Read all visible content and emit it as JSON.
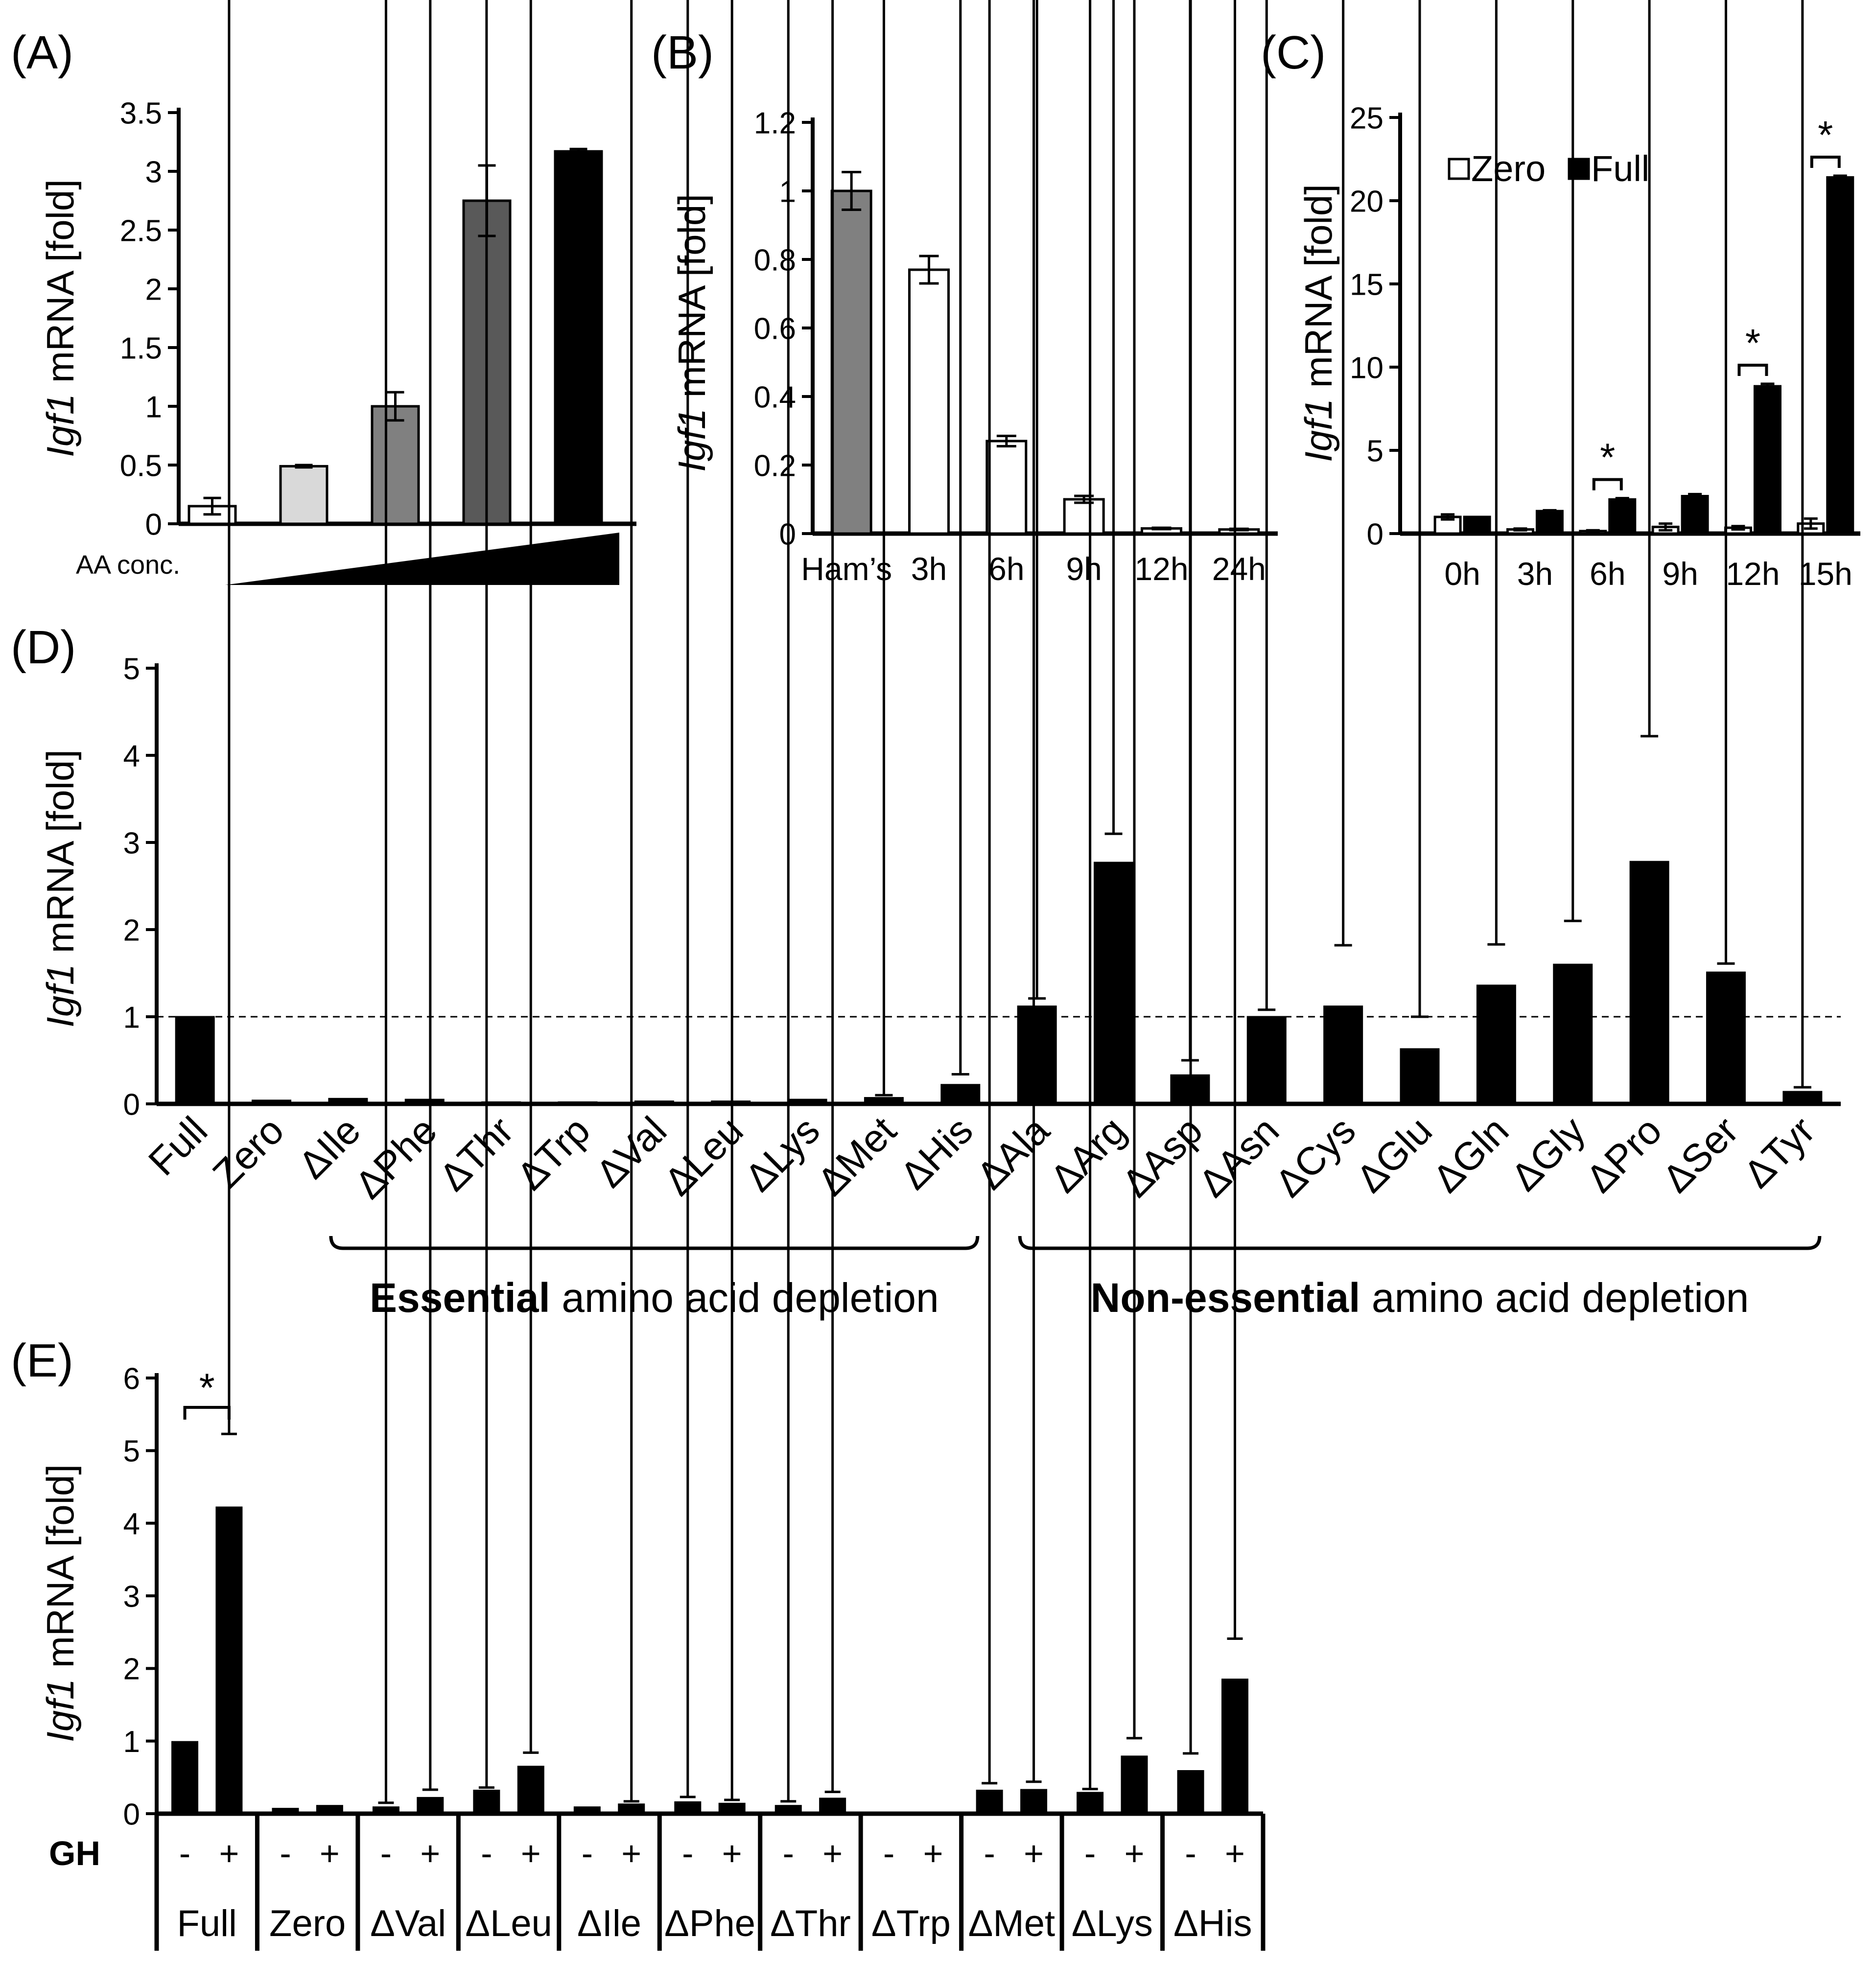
{
  "chart_data": [
    {
      "panel": "(A)",
      "type": "bar",
      "ylabel_italic": "Igf1",
      "ylabel_rest": " mRNA [fold]",
      "ylim": [
        0,
        3.5
      ],
      "yticks": [
        "0",
        "0.5",
        "1",
        "1.5",
        "2",
        "2.5",
        "3",
        "3.5"
      ],
      "xlabel": "AA conc.",
      "categories": [
        "",
        "",
        "",
        "",
        ""
      ],
      "values": [
        0.15,
        0.49,
        1.0,
        2.75,
        3.17
      ],
      "errors": [
        0.07,
        0.01,
        0.12,
        0.3,
        0.02
      ],
      "colors": [
        "#ffffff",
        "#d9d9d9",
        "#808080",
        "#595959",
        "#000000"
      ]
    },
    {
      "panel": "(B)",
      "type": "bar",
      "ylabel_italic": "Igf1",
      "ylabel_rest": " mRNA [fold]",
      "ylim": [
        0,
        1.2
      ],
      "yticks": [
        "0",
        "0.2",
        "0.4",
        "0.6",
        "0.8",
        "1",
        "1.2"
      ],
      "categories": [
        "Ham’s",
        "3h",
        "6h",
        "9h",
        "12h",
        "24h"
      ],
      "values": [
        1.0,
        0.77,
        0.27,
        0.1,
        0.015,
        0.012
      ],
      "errors": [
        0.055,
        0.04,
        0.015,
        0.01,
        0.002,
        0.002
      ],
      "colors": [
        "#808080",
        "#ffffff",
        "#ffffff",
        "#ffffff",
        "#ffffff",
        "#ffffff"
      ]
    },
    {
      "panel": "(C)",
      "type": "bar",
      "ylabel_italic": "Igf1",
      "ylabel_rest": " mRNA [fold]",
      "ylim": [
        0,
        25
      ],
      "yticks": [
        "0",
        "5",
        "10",
        "15",
        "20",
        "25"
      ],
      "categories": [
        "0h",
        "3h",
        "6h",
        "9h",
        "12h",
        "15h"
      ],
      "series": [
        {
          "name": "Zero",
          "values": [
            1.0,
            0.25,
            0.15,
            0.4,
            0.35,
            0.6
          ],
          "errors": [
            0.15,
            0.05,
            0.05,
            0.2,
            0.1,
            0.3
          ],
          "color": "#ffffff"
        },
        {
          "name": "Full",
          "values": [
            1.0,
            1.35,
            2.05,
            2.25,
            8.85,
            21.4
          ],
          "errors": [
            0.0,
            0.05,
            0.08,
            0.12,
            0.15,
            0.1
          ],
          "color": "#000000"
        }
      ],
      "significance_at": [
        "6h",
        "12h",
        "15h"
      ],
      "significance_mark": "*"
    },
    {
      "panel": "(D)",
      "type": "bar",
      "ylabel_italic": "Igf1",
      "ylabel_rest": " mRNA [fold]",
      "ylim": [
        0,
        5
      ],
      "yticks": [
        "0",
        "1",
        "2",
        "3",
        "4",
        "5"
      ],
      "reference_line": 1,
      "categories": [
        "Full",
        "Zero",
        "ΔIle",
        "ΔPhe",
        "ΔThr",
        "ΔTrp",
        "ΔVal",
        "ΔLeu",
        "ΔLys",
        "ΔMet",
        "ΔHis",
        "ΔAla",
        "ΔArg",
        "ΔAsp",
        "ΔAsn",
        "ΔCys",
        "ΔGlu",
        "ΔGln",
        "ΔGly",
        "ΔPro",
        "ΔSer",
        "ΔTyr"
      ],
      "values": [
        1.0,
        0.04,
        0.06,
        0.05,
        0.02,
        0.02,
        0.03,
        0.03,
        0.05,
        0.07,
        0.22,
        1.12,
        2.77,
        0.33,
        1.0,
        1.12,
        0.63,
        1.36,
        1.6,
        2.78,
        1.51,
        0.14
      ],
      "errors": [
        0.01,
        0.01,
        0.02,
        0.01,
        0.005,
        0.005,
        0.01,
        0.01,
        0.02,
        0.03,
        0.12,
        0.09,
        0.33,
        0.17,
        0.08,
        0.7,
        0.37,
        0.47,
        0.5,
        1.44,
        0.1,
        0.05
      ],
      "groups": [
        {
          "label_bold": "Essential",
          "label_rest": " amino acid depletion",
          "from": 2,
          "to": 10
        },
        {
          "label_bold": "Non-essential",
          "label_rest": " amino acid depletion",
          "from": 11,
          "to": 21
        }
      ]
    },
    {
      "panel": "(E)",
      "type": "bar",
      "ylabel_italic": "Igf1",
      "ylabel_rest": " mRNA [fold]",
      "ylim": [
        0,
        6
      ],
      "yticks": [
        "0",
        "1",
        "2",
        "3",
        "4",
        "5",
        "6"
      ],
      "row_label": "GH",
      "sign_labels": [
        "-",
        "+"
      ],
      "categories": [
        "Full",
        "Zero",
        "ΔVal",
        "ΔLeu",
        "ΔIle",
        "ΔPhe",
        "ΔThr",
        "ΔTrp",
        "ΔMet",
        "ΔLys",
        "ΔHis"
      ],
      "minus_values": [
        1.0,
        0.08,
        0.1,
        0.33,
        0.1,
        0.17,
        0.12,
        0.01,
        0.33,
        0.3,
        0.6
      ],
      "minus_errors": [
        0.01,
        0.02,
        0.05,
        0.03,
        0.02,
        0.06,
        0.05,
        0.01,
        0.09,
        0.04,
        0.23
      ],
      "plus_values": [
        4.23,
        0.12,
        0.23,
        0.66,
        0.14,
        0.15,
        0.22,
        0.03,
        0.34,
        0.8,
        1.86
      ],
      "plus_errors": [
        1.0,
        0.02,
        0.1,
        0.18,
        0.03,
        0.04,
        0.08,
        0.01,
        0.1,
        0.24,
        0.55
      ],
      "significance_at": [
        "Full"
      ],
      "significance_mark": "*"
    }
  ]
}
